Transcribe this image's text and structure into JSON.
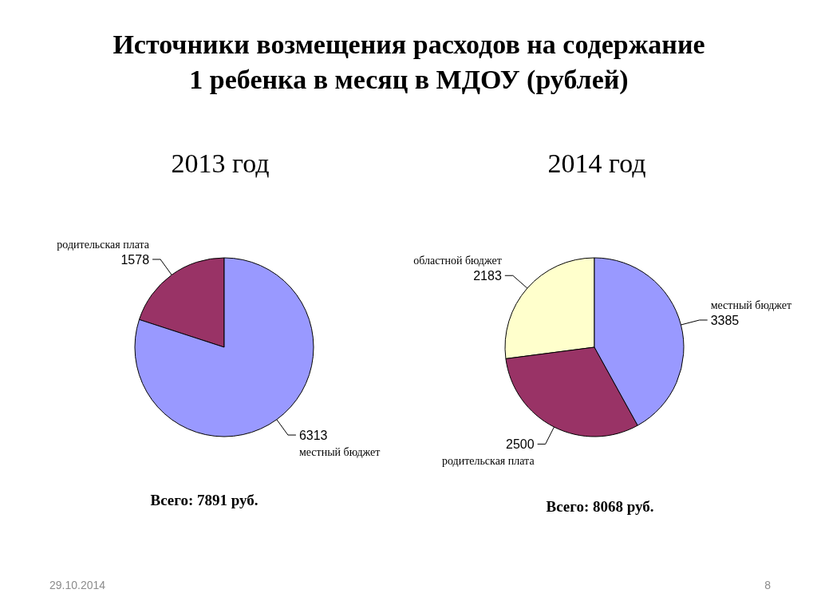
{
  "chart_data": [
    {
      "type": "pie",
      "title": "Источники возмещения расходов на содержание 1 ребенка в месяц в МДОУ (рублей)",
      "subtitle": "2013 год",
      "categories": [
        "родительская плата",
        "местный бюджет"
      ],
      "values": [
        1578,
        6313
      ],
      "colors": [
        "#993366",
        "#9999ff"
      ],
      "data_labels": true,
      "annotations": [
        "Всего: 7891 руб.",
        "29.10.2014"
      ]
    },
    {
      "type": "pie",
      "subtitle": "2014 год",
      "categories": [
        "областной бюджет",
        "родительская плата",
        "местный бюджет"
      ],
      "values": [
        2183,
        2500,
        3385
      ],
      "colors": [
        "#ffffcc",
        "#993366",
        "#9999ff"
      ],
      "data_labels": true,
      "annotations": [
        "Всего: 8068 руб.",
        "8"
      ]
    }
  ]
}
